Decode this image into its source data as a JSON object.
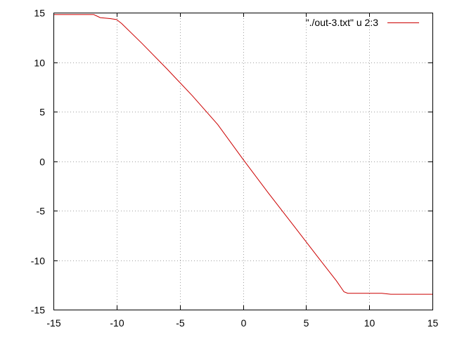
{
  "chart_data": {
    "type": "line",
    "title": "",
    "xlabel": "",
    "ylabel": "",
    "xlim": [
      -15,
      15
    ],
    "ylim": [
      -15,
      15
    ],
    "xticks": [
      -15,
      -10,
      -5,
      0,
      5,
      10,
      15
    ],
    "yticks": [
      -15,
      -10,
      -5,
      0,
      5,
      10,
      15
    ],
    "grid": true,
    "legend_position": "top-right",
    "series": [
      {
        "name": "\"./out-3.txt\" u 2:3",
        "color": "#cc0000",
        "x": [
          -15,
          -11.8,
          -11.3,
          -10.5,
          -10.0,
          -9.6,
          -8.0,
          -6.0,
          -4.0,
          -2.0,
          0.0,
          2.0,
          4.0,
          6.0,
          7.4,
          8.0,
          8.3,
          9.0,
          10.0,
          11.0,
          11.7,
          13.0,
          15.0
        ],
        "y": [
          14.8,
          14.8,
          14.5,
          14.4,
          14.3,
          13.9,
          11.9,
          9.3,
          6.6,
          3.7,
          0.2,
          -3.2,
          -6.5,
          -9.8,
          -12.1,
          -13.2,
          -13.35,
          -13.35,
          -13.35,
          -13.35,
          -13.45,
          -13.45,
          -13.45
        ]
      }
    ]
  }
}
